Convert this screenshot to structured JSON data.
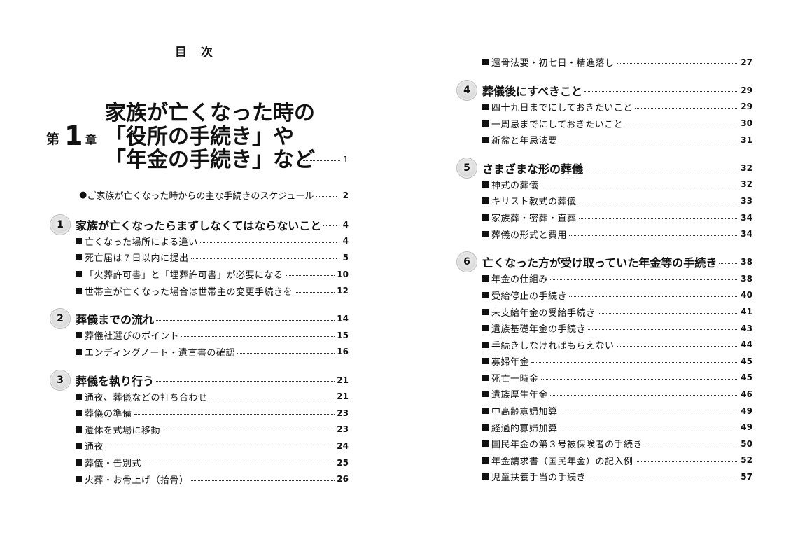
{
  "toc_title": "目 次",
  "chapter": {
    "prefix": "第",
    "number": "1",
    "suffix": "章",
    "title_lines": [
      "家族が亡くなった時の",
      "「役所の手続き」や",
      "「年金の手続き」など"
    ],
    "page": "1"
  },
  "schedule": {
    "bullet": "●",
    "label": "ご家族が亡くなった時からの主な手続きのスケジュール",
    "page": "2"
  },
  "left_column": [
    {
      "number": "1",
      "label": "家族が亡くなったらまずしなくてはならないこと",
      "page": "4",
      "items": [
        {
          "label": "亡くなった場所による違い",
          "page": "4"
        },
        {
          "label": "死亡届は７日以内に提出",
          "page": "5"
        },
        {
          "label": "「火葬許可書」と「埋葬許可書」が必要になる",
          "page": "10"
        },
        {
          "label": "世帯主が亡くなった場合は世帯主の変更手続きを",
          "page": "12"
        }
      ]
    },
    {
      "number": "2",
      "label": "葬儀までの流れ",
      "page": "14",
      "items": [
        {
          "label": "葬儀社選びのポイント",
          "page": "15"
        },
        {
          "label": "エンディングノート・遺言書の確認",
          "page": "16"
        }
      ]
    },
    {
      "number": "3",
      "label": "葬儀を執り行う",
      "page": "21",
      "items": [
        {
          "label": "通夜、葬儀などの打ち合わせ",
          "page": "21"
        },
        {
          "label": "葬儀の準備",
          "page": "23"
        },
        {
          "label": "遺体を式場に移動",
          "page": "23"
        },
        {
          "label": "通夜",
          "page": "24"
        },
        {
          "label": "葬儀・告別式",
          "page": "25"
        },
        {
          "label": "火葬・お骨上げ（拾骨）",
          "page": "26"
        }
      ]
    }
  ],
  "right_column": [
    {
      "number": null,
      "label": null,
      "page": null,
      "items": [
        {
          "label": "還骨法要・初七日・精進落し",
          "page": "27"
        }
      ]
    },
    {
      "number": "4",
      "label": "葬儀後にすべきこと",
      "page": "29",
      "items": [
        {
          "label": "四十九日までにしておきたいこと",
          "page": "29"
        },
        {
          "label": "一周忌までにしておきたいこと",
          "page": "30"
        },
        {
          "label": "新盆と年忌法要",
          "page": "31"
        }
      ]
    },
    {
      "number": "5",
      "label": "さまざまな形の葬儀",
      "page": "32",
      "items": [
        {
          "label": "神式の葬儀",
          "page": "32"
        },
        {
          "label": "キリスト教式の葬儀",
          "page": "33"
        },
        {
          "label": "家族葬・密葬・直葬",
          "page": "34"
        },
        {
          "label": "葬儀の形式と費用",
          "page": "34"
        }
      ]
    },
    {
      "number": "6",
      "label": "亡くなった方が受け取っていた年金等の手続き",
      "page": "38",
      "items": [
        {
          "label": "年金の仕組み",
          "page": "38"
        },
        {
          "label": "受給停止の手続き",
          "page": "40"
        },
        {
          "label": "未支給年金の受給手続き",
          "page": "41"
        },
        {
          "label": "遺族基礎年金の手続き",
          "page": "43"
        },
        {
          "label": "手続きしなければもらえない",
          "page": "44"
        },
        {
          "label": "寡婦年金",
          "page": "45"
        },
        {
          "label": "死亡一時金",
          "page": "45"
        },
        {
          "label": "遺族厚生年金",
          "page": "46"
        },
        {
          "label": "中高齢寡婦加算",
          "page": "49"
        },
        {
          "label": "経過的寡婦加算",
          "page": "49"
        },
        {
          "label": "国民年金の第３号被保険者の手続き",
          "page": "50"
        },
        {
          "label": "年金請求書（国民年金）の記入例",
          "page": "52"
        },
        {
          "label": "児童扶養手当の手続き",
          "page": "57"
        }
      ]
    }
  ]
}
